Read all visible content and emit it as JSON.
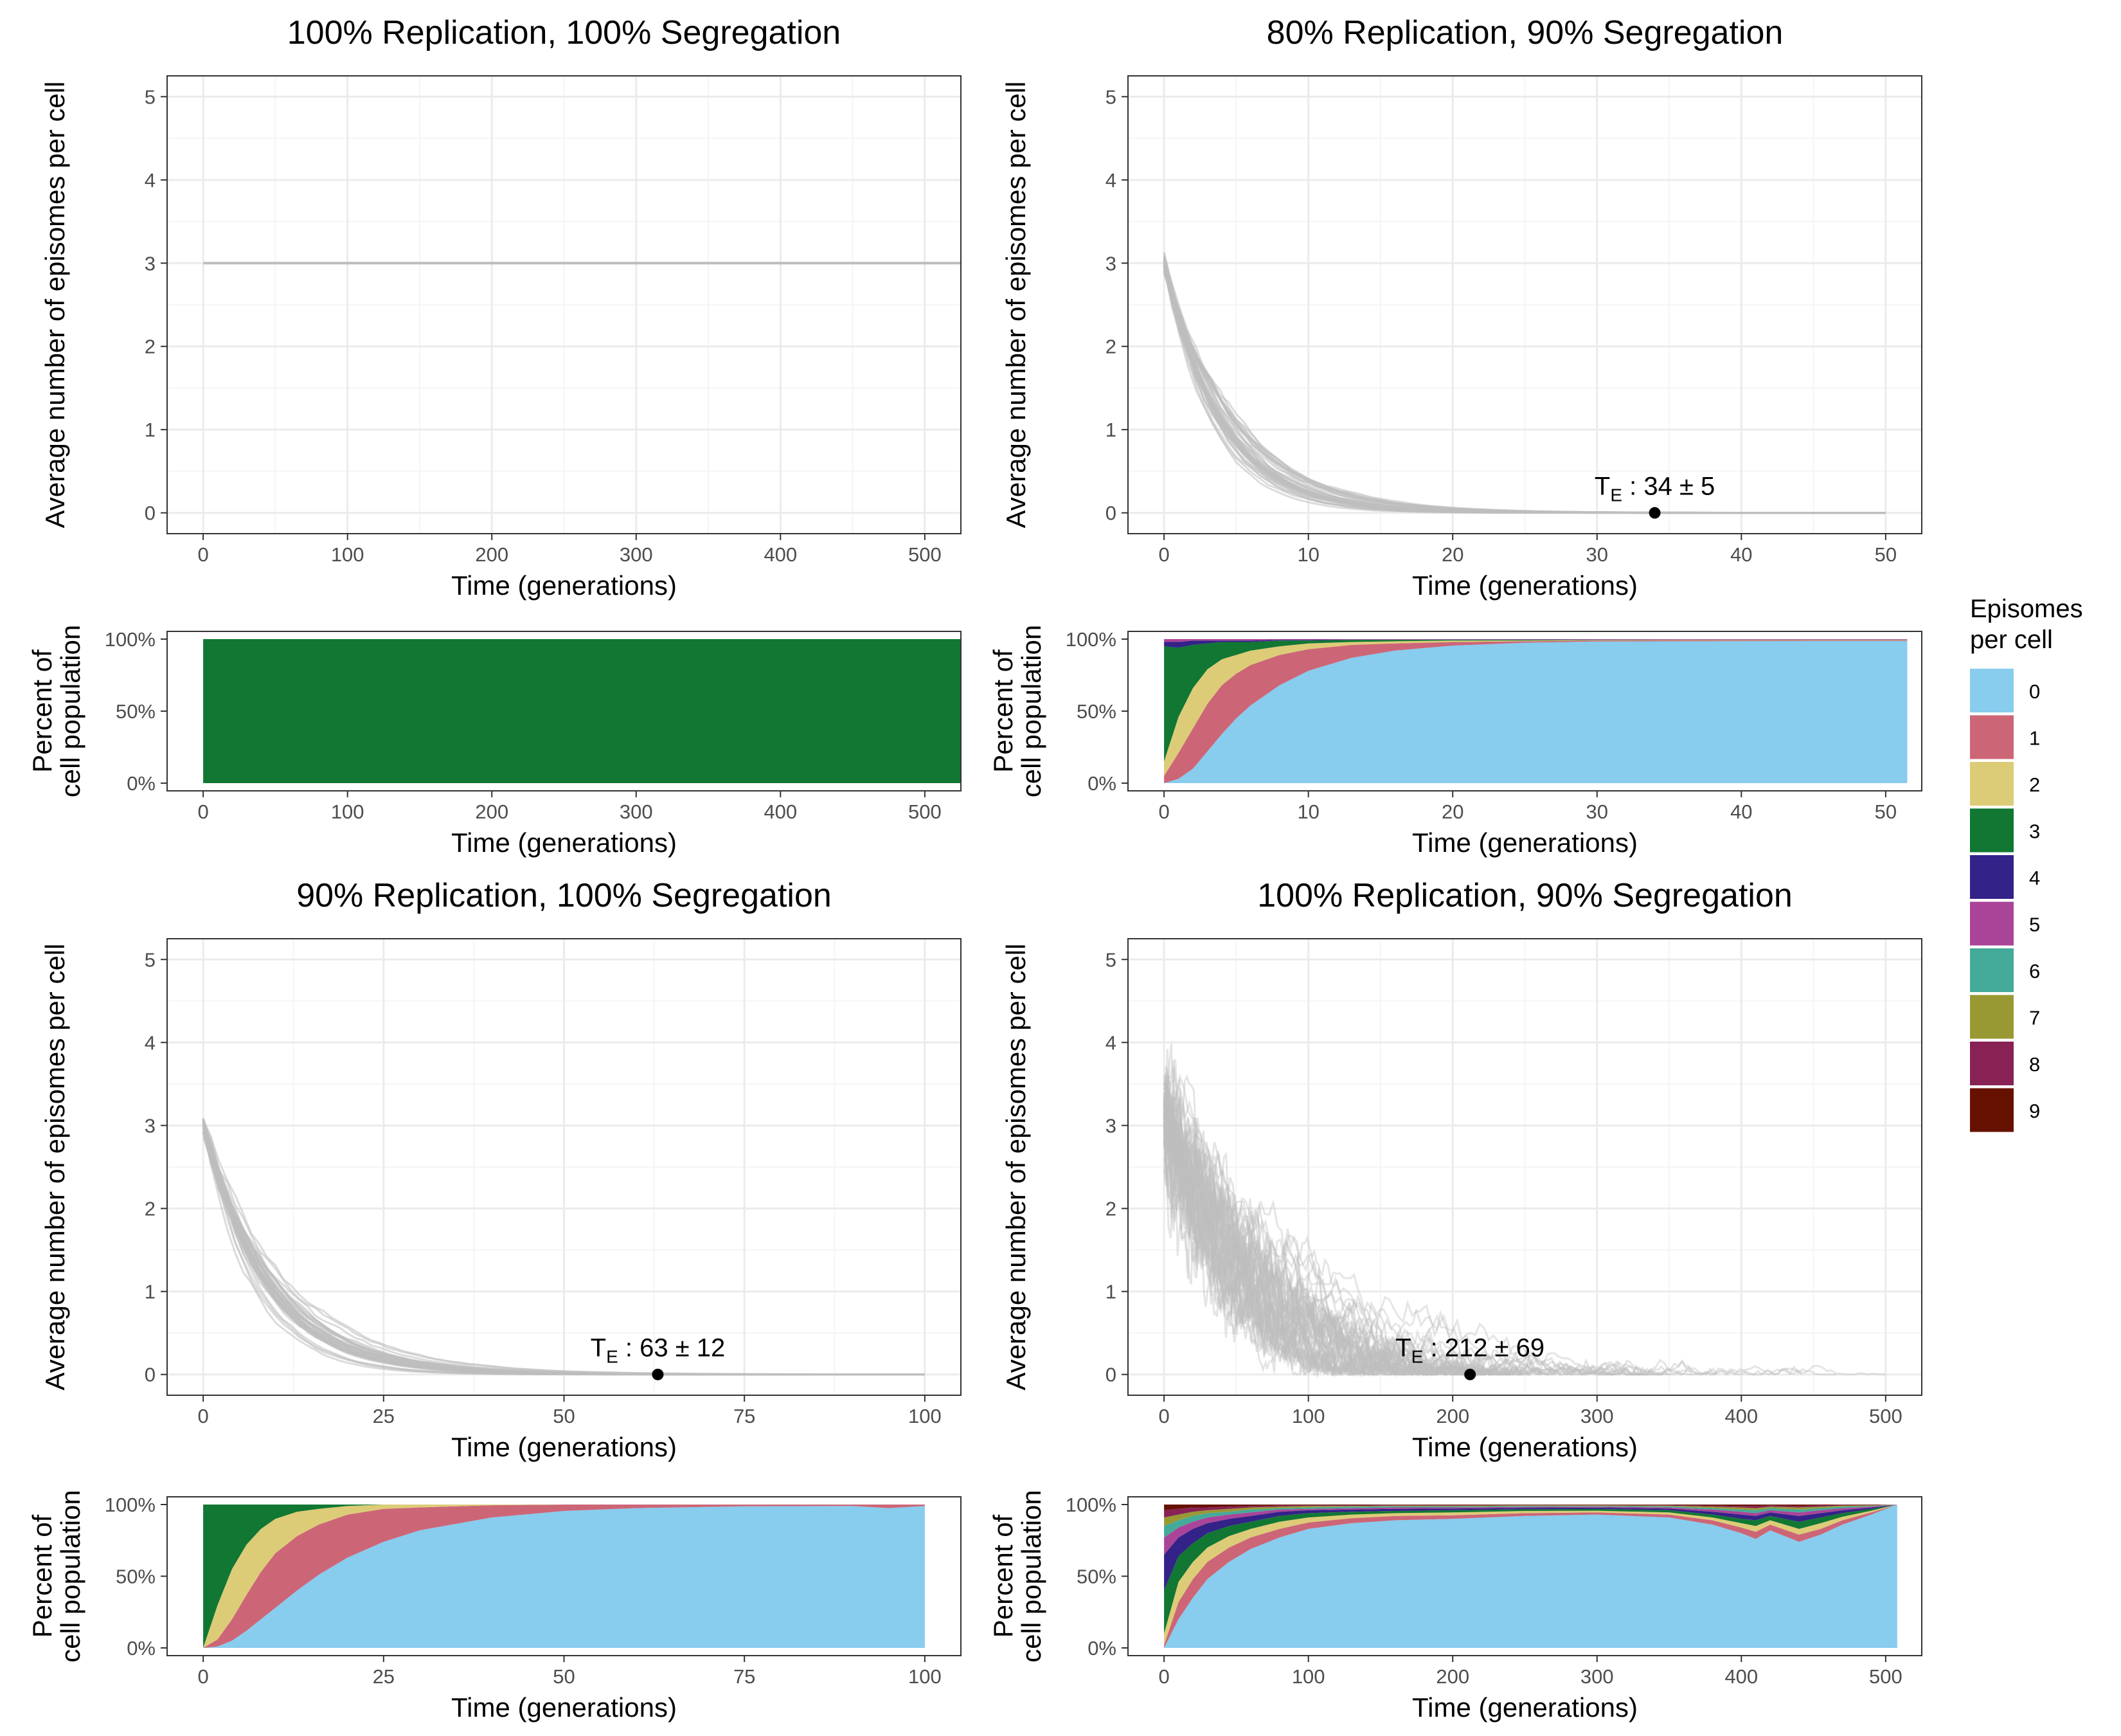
{
  "chart_data": [
    {
      "id": "A",
      "title": "100% Replication, 100% Segregation",
      "line_plot": {
        "type": "line",
        "xlabel": "Time (generations)",
        "ylabel": "Average number of episomes per cell",
        "xlim": [
          -25,
          525
        ],
        "ylim": [
          -0.25,
          5.25
        ],
        "xticks": [
          0,
          100,
          200,
          300,
          400,
          500
        ],
        "yticks": [
          0,
          1,
          2,
          3,
          4,
          5
        ],
        "x_end": 525,
        "traces": "constant",
        "start_value": 3,
        "annotation": null
      },
      "area_plot": {
        "type": "area",
        "xlabel": "Time (generations)",
        "ylabel_line1": "Percent of",
        "ylabel_line2": "cell population",
        "xlim": [
          -25,
          525
        ],
        "xticks": [
          0,
          100,
          200,
          300,
          400,
          500
        ],
        "yticks": [
          "0%",
          "50%",
          "100%"
        ],
        "x_end": 525,
        "x": [
          0,
          525
        ],
        "stack_fractions": [
          [
            0,
            0,
            0,
            1
          ],
          [
            0,
            0,
            0,
            1
          ]
        ]
      }
    },
    {
      "id": "B",
      "title": "80% Replication, 90% Segregation",
      "line_plot": {
        "type": "line",
        "xlabel": "Time (generations)",
        "ylabel": "Average number of episomes per cell",
        "xlim": [
          -2.5,
          52.5
        ],
        "ylim": [
          -0.25,
          5.25
        ],
        "xticks": [
          0,
          10,
          20,
          30,
          40,
          50
        ],
        "yticks": [
          0,
          1,
          2,
          3,
          4,
          5
        ],
        "x_end": 50,
        "traces": "decay",
        "start_value": 3,
        "decay_time": 4.2,
        "spread": 0.12,
        "n_traces": 40,
        "annotation": {
          "label_main": "T",
          "label_sub": "E",
          "label_value": " : 34 ± 5",
          "x": 34,
          "y": 0
        }
      },
      "area_plot": {
        "type": "area",
        "xlabel": "Time (generations)",
        "ylabel_line1": "Percent of",
        "ylabel_line2": "cell population",
        "xlim": [
          -2.5,
          52.5
        ],
        "xticks": [
          0,
          10,
          20,
          30,
          40,
          50
        ],
        "yticks": [
          "0%",
          "50%",
          "100%"
        ],
        "x_end": 51.5,
        "x": [
          0,
          1,
          2,
          3,
          4,
          5,
          6,
          8,
          10,
          13,
          16,
          20,
          25,
          30,
          35,
          40,
          45,
          51.5
        ],
        "stack_fractions": [
          [
            0.0,
            0.05,
            0.1,
            0.8,
            0.03,
            0.02
          ],
          [
            0.03,
            0.18,
            0.25,
            0.48,
            0.04,
            0.02
          ],
          [
            0.1,
            0.28,
            0.28,
            0.3,
            0.03,
            0.01
          ],
          [
            0.22,
            0.33,
            0.24,
            0.18,
            0.02,
            0.01
          ],
          [
            0.34,
            0.34,
            0.18,
            0.12,
            0.01,
            0.01
          ],
          [
            0.45,
            0.31,
            0.13,
            0.09,
            0.01,
            0.01
          ],
          [
            0.54,
            0.28,
            0.1,
            0.06,
            0.01,
            0.01
          ],
          [
            0.68,
            0.21,
            0.06,
            0.04,
            0.005,
            0.005
          ],
          [
            0.78,
            0.15,
            0.04,
            0.02,
            0.005,
            0.005
          ],
          [
            0.87,
            0.09,
            0.02,
            0.015,
            0.002,
            0.003
          ],
          [
            0.92,
            0.05,
            0.015,
            0.01,
            0.002,
            0.003
          ],
          [
            0.955,
            0.025,
            0.01,
            0.005,
            0.002,
            0.003
          ],
          [
            0.975,
            0.01,
            0.005,
            0.005,
            0.002,
            0.003
          ],
          [
            0.983,
            0.007,
            0.003,
            0.002,
            0.002,
            0.003
          ],
          [
            0.985,
            0.006,
            0.003,
            0.001,
            0.002,
            0.003
          ],
          [
            0.986,
            0.005,
            0.003,
            0.001,
            0.002,
            0.003
          ],
          [
            0.987,
            0.004,
            0.003,
            0.001,
            0.002,
            0.003
          ],
          [
            0.987,
            0.004,
            0.003,
            0.001,
            0.002,
            0.003
          ]
        ]
      }
    },
    {
      "id": "C",
      "title": "90% Replication, 100% Segregation",
      "line_plot": {
        "type": "line",
        "xlabel": "Time (generations)",
        "ylabel": "Average number of episomes per cell",
        "xlim": [
          -5,
          105
        ],
        "ylim": [
          -0.25,
          5.25
        ],
        "xticks": [
          0,
          25,
          50,
          75,
          100
        ],
        "yticks": [
          0,
          1,
          2,
          3,
          4,
          5
        ],
        "x_end": 100,
        "traces": "decay",
        "start_value": 3,
        "decay_time": 9.0,
        "spread": 0.12,
        "n_traces": 40,
        "annotation": {
          "label_main": "T",
          "label_sub": "E",
          "label_value": " : 63 ± 12",
          "x": 63,
          "y": 0
        }
      },
      "area_plot": {
        "type": "area",
        "xlabel": "Time (generations)",
        "ylabel_line1": "Percent of",
        "ylabel_line2": "cell population",
        "xlim": [
          -5,
          105
        ],
        "xticks": [
          0,
          25,
          50,
          75,
          100
        ],
        "yticks": [
          "0%",
          "50%",
          "100%"
        ],
        "x_end": 100,
        "x": [
          0,
          2,
          4,
          6,
          8,
          10,
          13,
          16,
          20,
          25,
          30,
          40,
          50,
          60,
          75,
          90,
          95,
          100
        ],
        "stack_fractions": [
          [
            0.0,
            0.0,
            0.0,
            1.0
          ],
          [
            0.01,
            0.05,
            0.24,
            0.7
          ],
          [
            0.05,
            0.15,
            0.35,
            0.45
          ],
          [
            0.12,
            0.25,
            0.35,
            0.28
          ],
          [
            0.2,
            0.33,
            0.3,
            0.17
          ],
          [
            0.28,
            0.38,
            0.24,
            0.1
          ],
          [
            0.4,
            0.38,
            0.17,
            0.05
          ],
          [
            0.51,
            0.35,
            0.11,
            0.03
          ],
          [
            0.63,
            0.3,
            0.06,
            0.01
          ],
          [
            0.74,
            0.23,
            0.03,
            0.0
          ],
          [
            0.82,
            0.16,
            0.02,
            0.0
          ],
          [
            0.91,
            0.085,
            0.005,
            0.0
          ],
          [
            0.955,
            0.045,
            0.0,
            0.0
          ],
          [
            0.975,
            0.025,
            0.0,
            0.0
          ],
          [
            0.988,
            0.012,
            0.0,
            0.0
          ],
          [
            0.99,
            0.01,
            0.0,
            0.0
          ],
          [
            0.975,
            0.025,
            0.0,
            0.0
          ],
          [
            0.99,
            0.01,
            0.0,
            0.0
          ]
        ]
      }
    },
    {
      "id": "D",
      "title": "100% Replication, 90% Segregation",
      "line_plot": {
        "type": "line",
        "xlabel": "Time (generations)",
        "ylabel": "Average number of episomes per cell",
        "xlim": [
          -25,
          525
        ],
        "ylim": [
          -0.25,
          5.25
        ],
        "xticks": [
          0,
          100,
          200,
          300,
          400,
          500
        ],
        "yticks": [
          0,
          1,
          2,
          3,
          4,
          5
        ],
        "x_end": 500,
        "traces": "random_walk",
        "start_value": 3,
        "decay_time": 80,
        "spread": 0.45,
        "n_traces": 60,
        "annotation": {
          "label_main": "T",
          "label_sub": "E",
          "label_value": " : 212 ± 69",
          "x": 212,
          "y": 0
        }
      },
      "area_plot": {
        "type": "area",
        "xlabel": "Time (generations)",
        "ylabel_line1": "Percent of",
        "ylabel_line2": "cell population",
        "xlim": [
          -25,
          525
        ],
        "xticks": [
          0,
          100,
          200,
          300,
          400,
          500
        ],
        "yticks": [
          "0%",
          "50%",
          "100%"
        ],
        "x_end": 508,
        "x": [
          0,
          10,
          20,
          30,
          45,
          60,
          80,
          100,
          130,
          160,
          200,
          250,
          300,
          350,
          380,
          400,
          410,
          420,
          440,
          455,
          470,
          490,
          508
        ],
        "stack_fractions": [
          [
            0.0,
            0.02,
            0.08,
            0.3,
            0.25,
            0.12,
            0.08,
            0.06,
            0.05,
            0.04
          ],
          [
            0.2,
            0.12,
            0.14,
            0.18,
            0.13,
            0.07,
            0.05,
            0.04,
            0.04,
            0.03
          ],
          [
            0.35,
            0.13,
            0.12,
            0.13,
            0.1,
            0.05,
            0.04,
            0.03,
            0.03,
            0.02
          ],
          [
            0.48,
            0.12,
            0.1,
            0.1,
            0.07,
            0.04,
            0.03,
            0.02,
            0.02,
            0.02
          ],
          [
            0.6,
            0.1,
            0.08,
            0.07,
            0.05,
            0.03,
            0.02,
            0.02,
            0.015,
            0.015
          ],
          [
            0.69,
            0.08,
            0.06,
            0.05,
            0.04,
            0.025,
            0.02,
            0.015,
            0.01,
            0.01
          ],
          [
            0.77,
            0.06,
            0.05,
            0.04,
            0.03,
            0.015,
            0.01,
            0.01,
            0.01,
            0.005
          ],
          [
            0.83,
            0.045,
            0.035,
            0.03,
            0.02,
            0.01,
            0.01,
            0.01,
            0.005,
            0.005
          ],
          [
            0.87,
            0.035,
            0.025,
            0.02,
            0.015,
            0.01,
            0.01,
            0.005,
            0.005,
            0.005
          ],
          [
            0.89,
            0.03,
            0.02,
            0.015,
            0.015,
            0.01,
            0.008,
            0.005,
            0.004,
            0.003
          ],
          [
            0.9,
            0.025,
            0.02,
            0.015,
            0.012,
            0.008,
            0.007,
            0.005,
            0.004,
            0.004
          ],
          [
            0.92,
            0.02,
            0.015,
            0.012,
            0.01,
            0.007,
            0.006,
            0.004,
            0.003,
            0.003
          ],
          [
            0.93,
            0.015,
            0.012,
            0.012,
            0.01,
            0.006,
            0.005,
            0.004,
            0.003,
            0.003
          ],
          [
            0.91,
            0.02,
            0.015,
            0.015,
            0.012,
            0.008,
            0.007,
            0.005,
            0.004,
            0.004
          ],
          [
            0.86,
            0.03,
            0.02,
            0.02,
            0.02,
            0.015,
            0.01,
            0.01,
            0.008,
            0.007
          ],
          [
            0.8,
            0.04,
            0.03,
            0.03,
            0.03,
            0.02,
            0.015,
            0.015,
            0.01,
            0.01
          ],
          [
            0.76,
            0.05,
            0.04,
            0.04,
            0.03,
            0.02,
            0.02,
            0.015,
            0.015,
            0.01
          ],
          [
            0.82,
            0.04,
            0.03,
            0.03,
            0.025,
            0.015,
            0.015,
            0.01,
            0.01,
            0.005
          ],
          [
            0.74,
            0.05,
            0.04,
            0.05,
            0.04,
            0.025,
            0.02,
            0.015,
            0.01,
            0.01
          ],
          [
            0.79,
            0.04,
            0.04,
            0.04,
            0.03,
            0.02,
            0.015,
            0.01,
            0.01,
            0.005
          ],
          [
            0.86,
            0.03,
            0.025,
            0.025,
            0.02,
            0.015,
            0.01,
            0.008,
            0.004,
            0.003
          ],
          [
            0.93,
            0.015,
            0.012,
            0.012,
            0.01,
            0.006,
            0.005,
            0.004,
            0.003,
            0.003
          ],
          [
            1.0,
            0.0,
            0.0,
            0.0,
            0.0,
            0.0,
            0.0,
            0.0,
            0.0,
            0.0
          ]
        ]
      }
    }
  ],
  "legend": {
    "title_line1": "Episomes",
    "title_line2": "per cell",
    "items": [
      {
        "label": "0",
        "color": "#88CCEE"
      },
      {
        "label": "1",
        "color": "#CC6677"
      },
      {
        "label": "2",
        "color": "#DDCC77"
      },
      {
        "label": "3",
        "color": "#117733"
      },
      {
        "label": "4",
        "color": "#332288"
      },
      {
        "label": "5",
        "color": "#AA4499"
      },
      {
        "label": "6",
        "color": "#44AA99"
      },
      {
        "label": "7",
        "color": "#999933"
      },
      {
        "label": "8",
        "color": "#882255"
      },
      {
        "label": "9",
        "color": "#661100"
      }
    ]
  },
  "colors": {
    "trace": "#bdbdbd",
    "grid_major": "#ebebeb",
    "grid_minor": "#f5f5f5",
    "panel_border": "#333333",
    "tick_text": "#4d4d4d"
  }
}
